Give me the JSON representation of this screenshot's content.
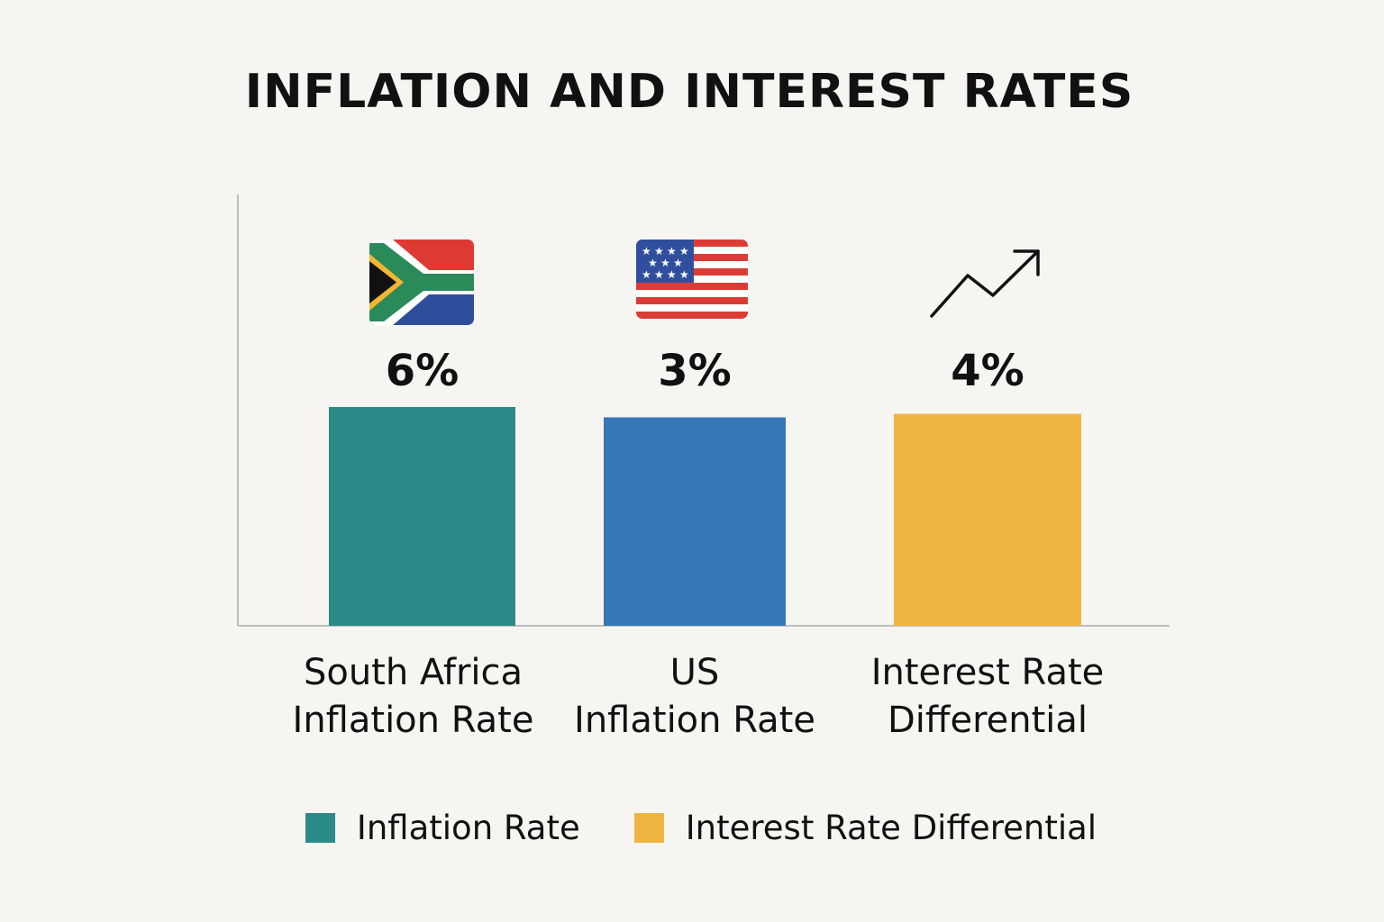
{
  "title": "INFLATION AND INTEREST RATES",
  "colors": {
    "background": "#f7f5f1",
    "teal": "#2b8a87",
    "blue": "#3677b5",
    "gold": "#f0b443",
    "axis": "#bdbdbd",
    "text": "#111111"
  },
  "icons": [
    "south-africa-flag-icon",
    "us-flag-icon",
    "trend-up-icon"
  ],
  "chart_data": {
    "type": "bar",
    "title": "INFLATION AND INTEREST RATES",
    "categories": [
      [
        "South Africa",
        "Inflation Rate"
      ],
      [
        "US",
        "Inflation Rate"
      ],
      [
        "Interest Rate",
        "Differential"
      ]
    ],
    "values": [
      6,
      3,
      4
    ],
    "value_labels": [
      "6%",
      "3%",
      "4%"
    ],
    "bar_colors": [
      "#2b8a87",
      "#3677b5",
      "#f0b443"
    ],
    "ylim": [
      0,
      6
    ],
    "xlabel": "",
    "ylabel": "",
    "grid": false,
    "legend": {
      "position": "bottom",
      "entries": [
        {
          "label": "Inflation Rate",
          "color": "#2b8a87"
        },
        {
          "label": "Interest Rate Differential",
          "color": "#f0b443"
        }
      ]
    }
  }
}
